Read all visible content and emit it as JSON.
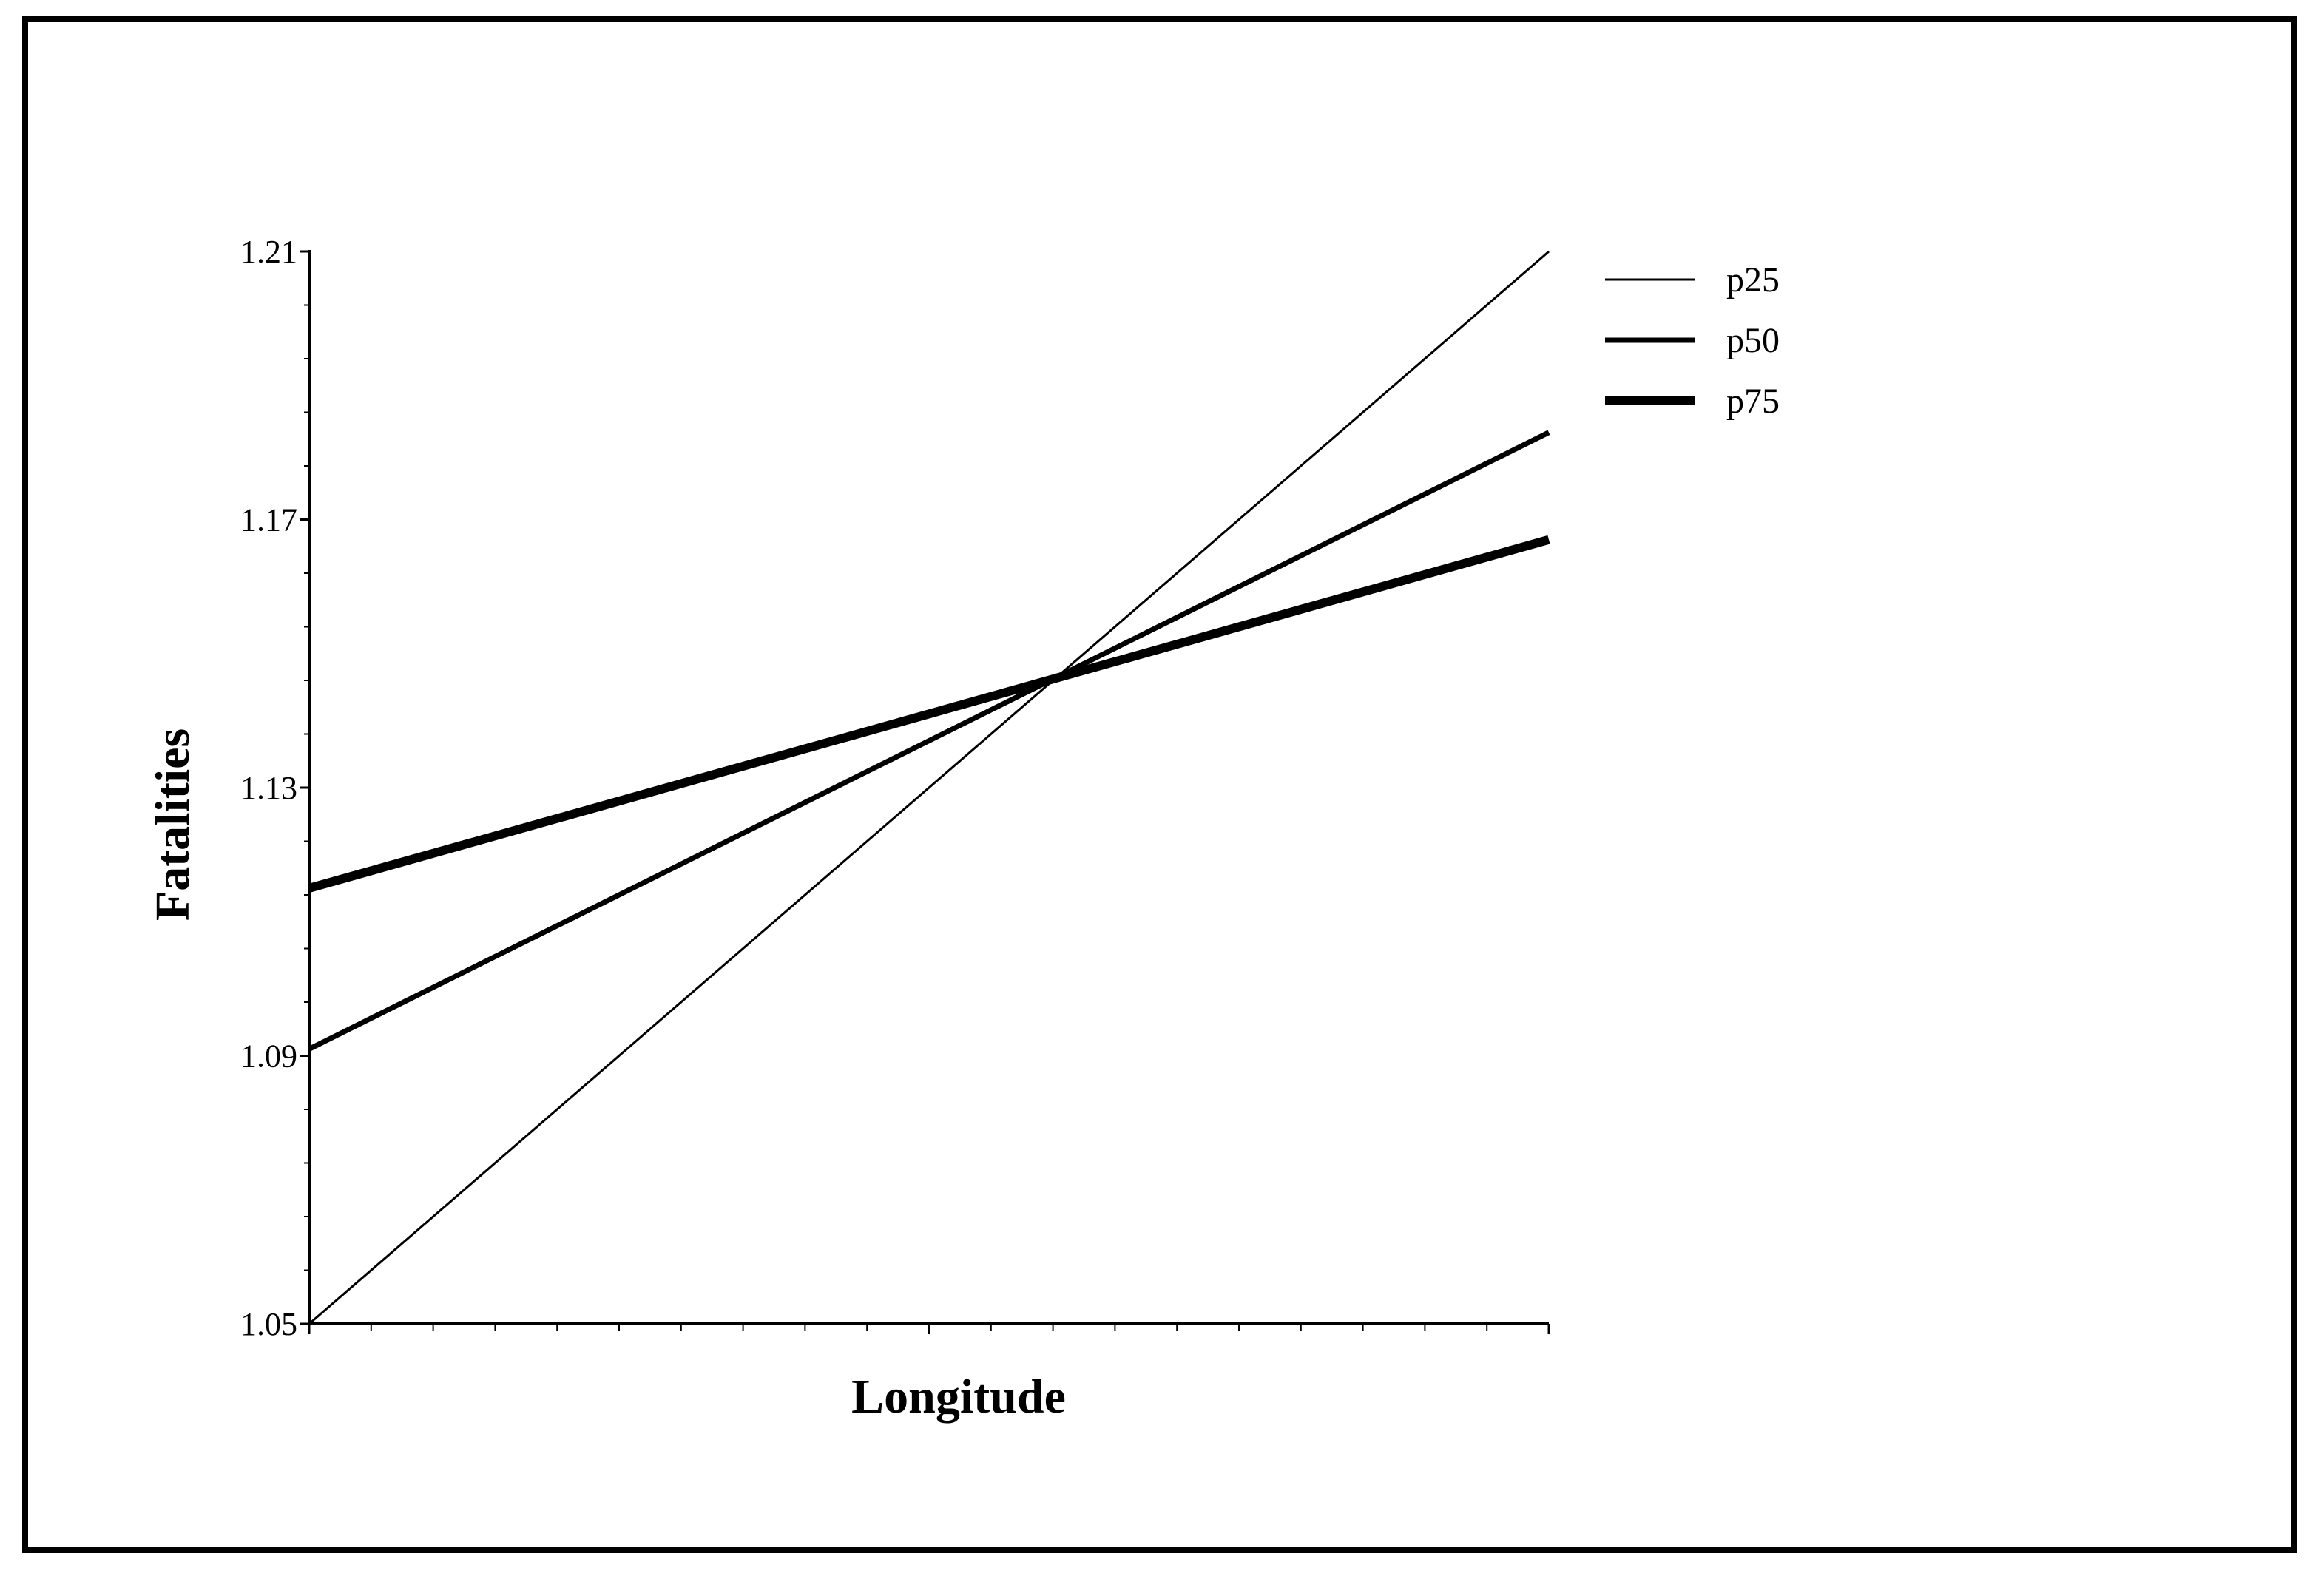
{
  "chart_data": {
    "type": "line",
    "xlabel": "Longitude",
    "ylabel": "Fatalities",
    "ylim": [
      1.05,
      1.21
    ],
    "yticks": [
      "1.05",
      "1.09",
      "1.13",
      "1.17",
      "1.21"
    ],
    "x": [
      0,
      1
    ],
    "series": [
      {
        "name": "p25",
        "values": [
          1.05,
          1.21
        ]
      },
      {
        "name": "p50",
        "values": [
          1.091,
          1.183
        ]
      },
      {
        "name": "p75",
        "values": [
          1.115,
          1.167
        ]
      }
    ],
    "legend_position": "top-right",
    "grid": false,
    "colors": {
      "line": "#000000",
      "background": "#ffffff"
    }
  }
}
